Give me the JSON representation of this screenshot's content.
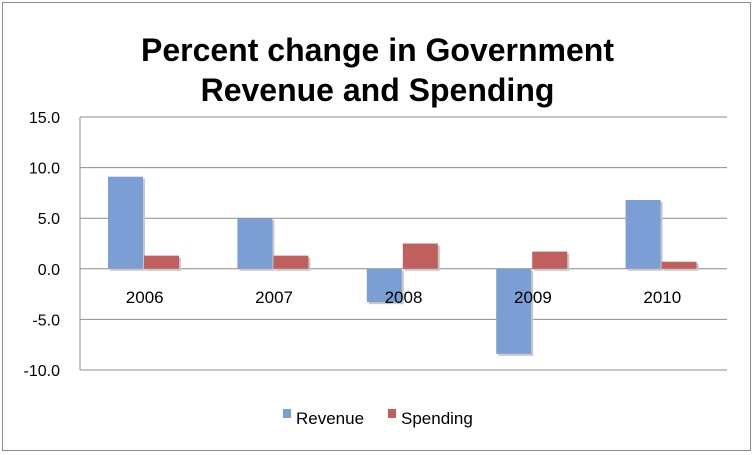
{
  "chart_data": {
    "type": "bar",
    "title_line1": "Percent change in Government",
    "title_line2": "Revenue and Spending",
    "categories": [
      "2006",
      "2007",
      "2008",
      "2009",
      "2010"
    ],
    "series": [
      {
        "name": "Revenue",
        "color": "#7b9fd4",
        "values": [
          9.1,
          5.0,
          -3.3,
          -8.4,
          6.8
        ]
      },
      {
        "name": "Spending",
        "color": "#c0605e",
        "values": [
          1.3,
          1.3,
          2.5,
          1.7,
          0.7
        ]
      }
    ],
    "ylim": [
      -10,
      15
    ],
    "yticks": [
      -10,
      -5,
      0,
      5,
      10,
      15
    ],
    "ytick_labels": [
      "-10.0",
      "-5.0",
      "0.0",
      "5.0",
      "10.0",
      "15.0"
    ],
    "grid": true,
    "legend_position": "bottom"
  }
}
